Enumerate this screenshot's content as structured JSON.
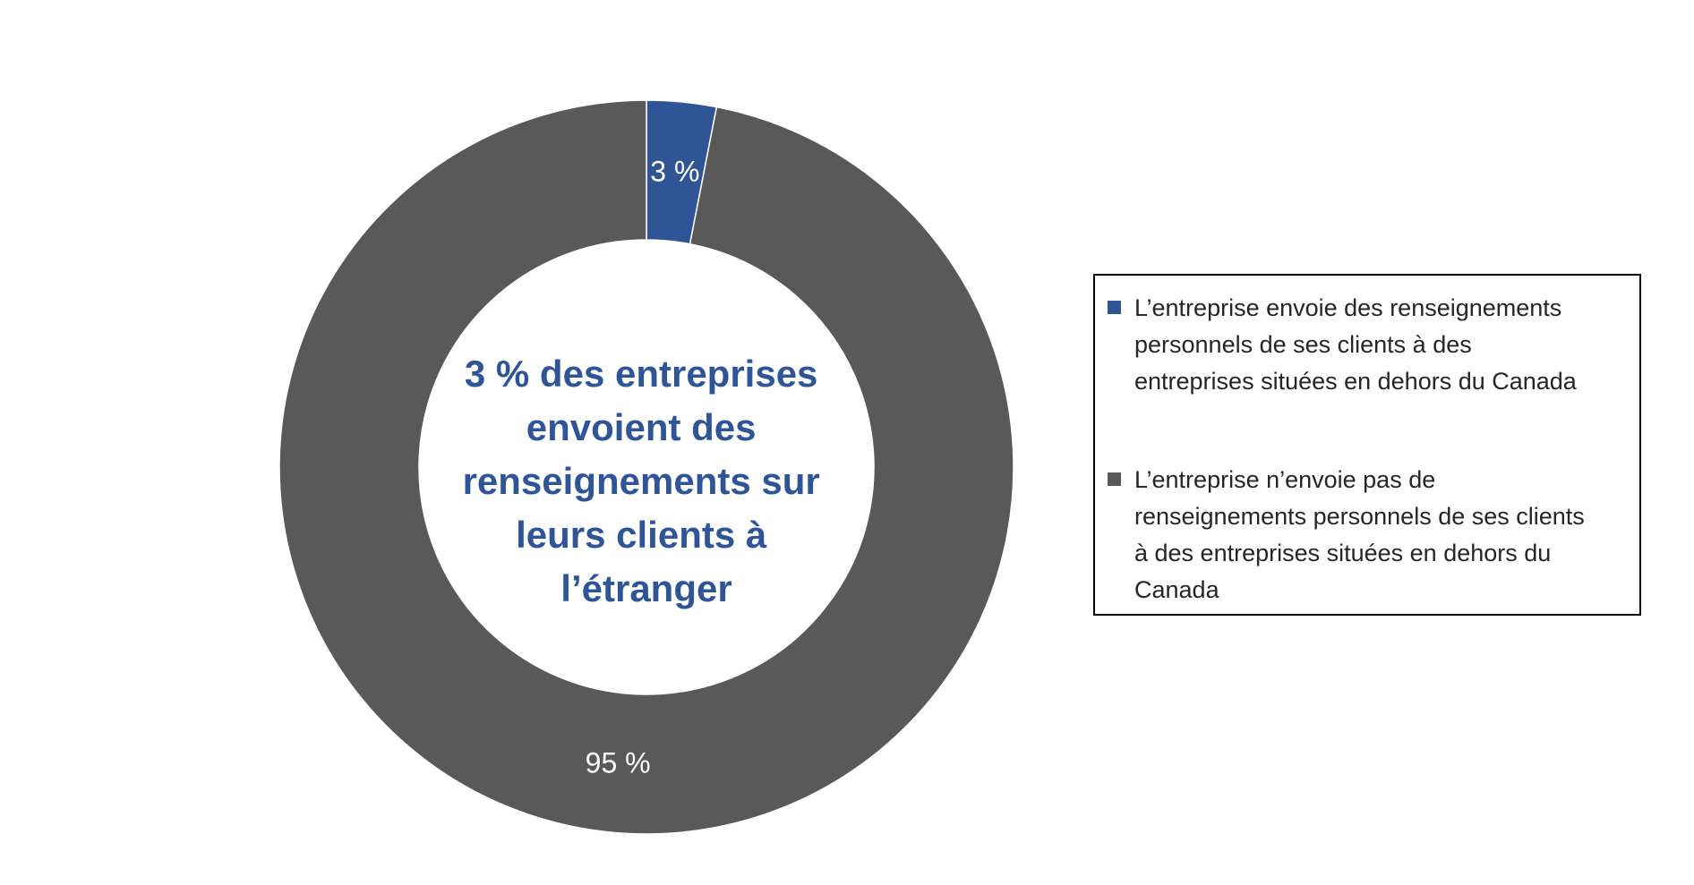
{
  "chart_data": {
    "type": "pie",
    "variant": "donut",
    "title": "",
    "center_text": [
      "3 % des entreprises",
      "envoient des",
      "renseignements sur",
      "leurs clients à",
      "l’étranger"
    ],
    "categories": [
      "L’entreprise envoie des renseignements personnels de ses clients à des entreprises situées en dehors du Canada",
      "L’entreprise n’envoie pas de renseignements personnels de ses clients à des entreprises situées en dehors du Canada"
    ],
    "values": [
      3,
      95
    ],
    "data_labels": [
      "3 %",
      "95 %"
    ],
    "colors": [
      "#2f5597",
      "#595959"
    ],
    "legend_position": "right",
    "legend": [
      {
        "lines": [
          "L’entreprise envoie des renseignements",
          "personnels de ses clients à des",
          "entreprises situées en dehors du Canada"
        ],
        "color": "#2f5597"
      },
      {
        "lines": [
          "L’entreprise n’envoie pas de",
          "renseignements personnels de ses clients",
          "à des entreprises situées en dehors du",
          "Canada"
        ],
        "color": "#595959"
      }
    ]
  }
}
